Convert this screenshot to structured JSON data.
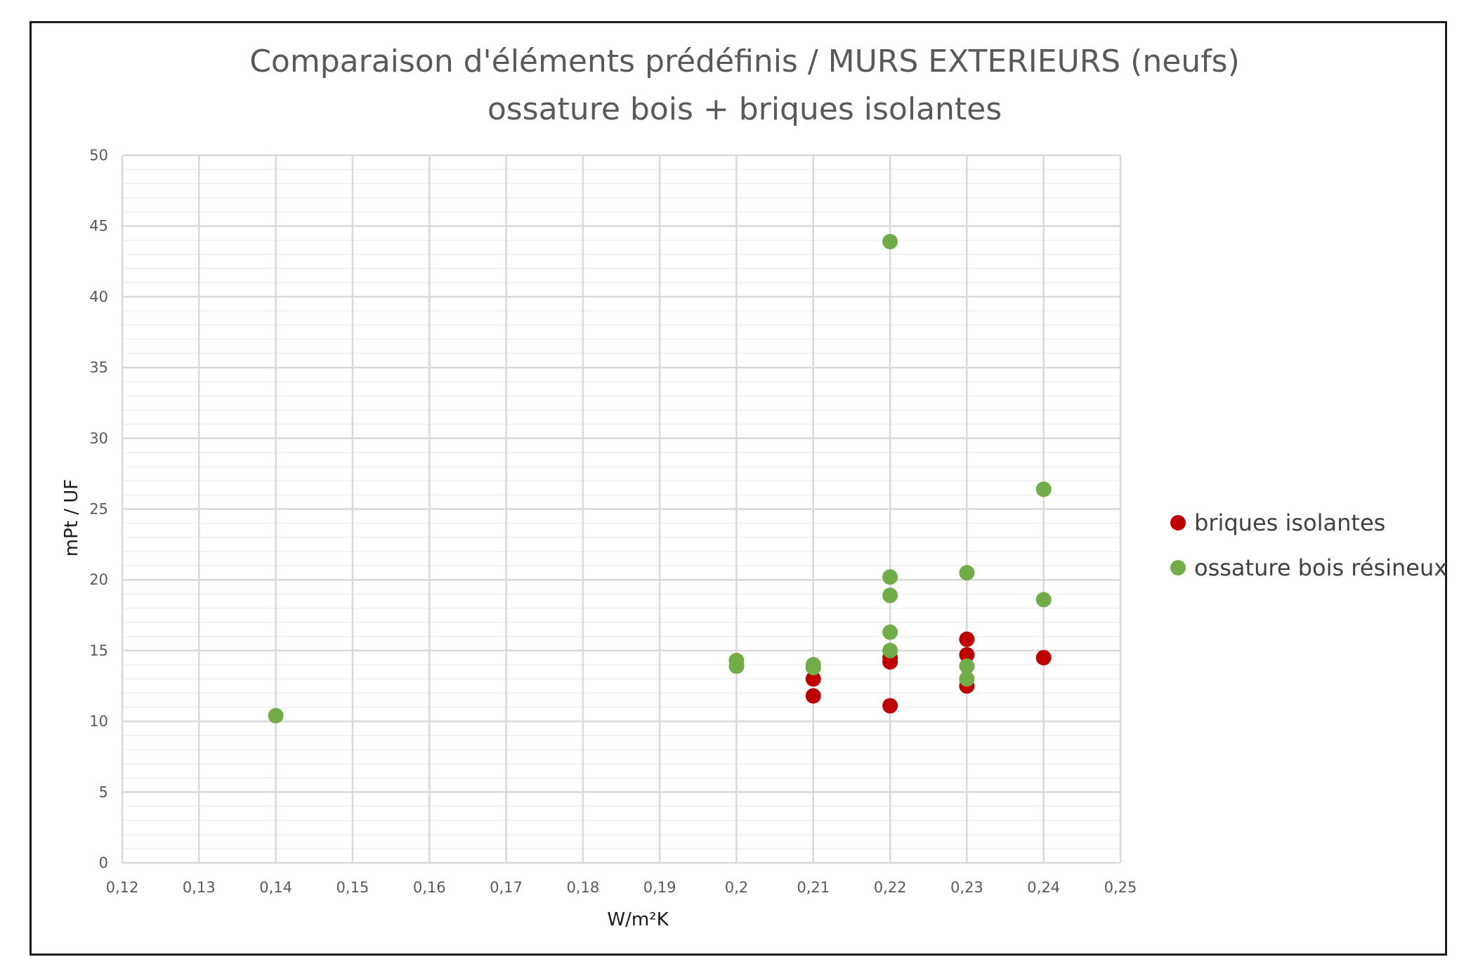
{
  "chart_data": {
    "type": "scatter",
    "title_line1": "Comparaison d'éléments prédéfinis / MURS EXTERIEURS (neufs)",
    "title_line2": "ossature bois + briques isolantes",
    "xlabel": "W/m²K",
    "ylabel": "mPt / UF",
    "xlim": [
      0.12,
      0.25
    ],
    "ylim": [
      0,
      50
    ],
    "x_ticks": [
      "0,12",
      "0,13",
      "0,14",
      "0,15",
      "0,16",
      "0,17",
      "0,18",
      "0,19",
      "0,2",
      "0,21",
      "0,22",
      "0,23",
      "0,24",
      "0,25"
    ],
    "y_ticks": [
      "0",
      "5",
      "10",
      "15",
      "20",
      "25",
      "30",
      "35",
      "40",
      "45",
      "50"
    ],
    "grid": true,
    "legend_position": "right",
    "series": [
      {
        "name": "briques isolantes",
        "color": "#c00000",
        "points": [
          [
            0.21,
            11.8
          ],
          [
            0.21,
            13.0
          ],
          [
            0.22,
            11.1
          ],
          [
            0.22,
            14.2
          ],
          [
            0.22,
            14.5
          ],
          [
            0.23,
            12.5
          ],
          [
            0.23,
            14.7
          ],
          [
            0.23,
            15.8
          ],
          [
            0.24,
            14.5
          ]
        ]
      },
      {
        "name": "ossature bois résineux",
        "color": "#70ad47",
        "points": [
          [
            0.14,
            10.4
          ],
          [
            0.2,
            13.9
          ],
          [
            0.2,
            14.3
          ],
          [
            0.21,
            13.8
          ],
          [
            0.21,
            14.0
          ],
          [
            0.22,
            43.9
          ],
          [
            0.22,
            20.2
          ],
          [
            0.22,
            18.9
          ],
          [
            0.22,
            16.3
          ],
          [
            0.22,
            15.0
          ],
          [
            0.23,
            20.5
          ],
          [
            0.23,
            13.9
          ],
          [
            0.23,
            13.0
          ],
          [
            0.24,
            26.4
          ],
          [
            0.24,
            18.6
          ]
        ]
      }
    ]
  }
}
